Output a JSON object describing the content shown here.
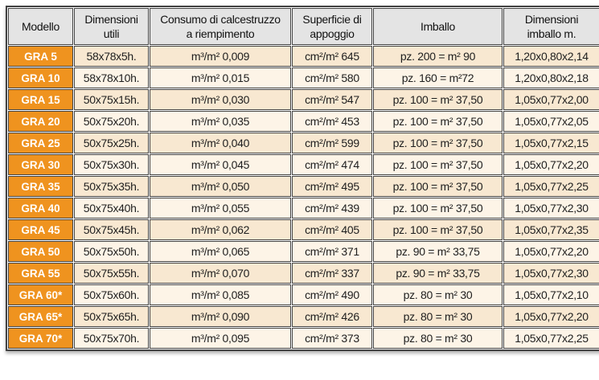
{
  "colors": {
    "accent-orange": "#ef931f",
    "header-gray": "#e4e4e4",
    "row-cream": "#f8e8d1",
    "row-light": "#fdf4e7",
    "border-dark": "#424242",
    "gap-white": "#ffffff"
  },
  "table": {
    "headers": [
      "Modello",
      "Dimensioni\nutili",
      "Consumo di calcestruzzo\na riempimento",
      "Superficie di\nappoggio",
      "Imballo",
      "Dimensioni\nimballo m."
    ],
    "rows": [
      {
        "modello": "GRA 5",
        "dimensioni_utili": "58x78x5h.",
        "consumo": "m³/m² 0,009",
        "superficie": "cm²/m² 645",
        "imballo": "pz. 200 = m² 90",
        "dimensioni_imballo": "1,20x0,80x2,14"
      },
      {
        "modello": "GRA 10",
        "dimensioni_utili": "58x78x10h.",
        "consumo": "m³/m² 0,015",
        "superficie": "cm²/m² 580",
        "imballo": "pz. 160 = m²72",
        "dimensioni_imballo": "1,20x0,80x2,18"
      },
      {
        "modello": "GRA 15",
        "dimensioni_utili": "50x75x15h.",
        "consumo": "m³/m² 0,030",
        "superficie": "cm²/m² 547",
        "imballo": "pz. 100 = m² 37,50",
        "dimensioni_imballo": "1,05x0,77x2,00"
      },
      {
        "modello": "GRA 20",
        "dimensioni_utili": "50x75x20h.",
        "consumo": "m³/m² 0,035",
        "superficie": "cm²/m² 453",
        "imballo": "pz. 100 = m² 37,50",
        "dimensioni_imballo": "1,05x0,77x2,05"
      },
      {
        "modello": "GRA 25",
        "dimensioni_utili": "50x75x25h.",
        "consumo": "m³/m² 0,040",
        "superficie": "cm²/m² 599",
        "imballo": "pz. 100 = m² 37,50",
        "dimensioni_imballo": "1,05x0,77x2,15"
      },
      {
        "modello": "GRA 30",
        "dimensioni_utili": "50x75x30h.",
        "consumo": "m³/m² 0,045",
        "superficie": "cm²/m² 474",
        "imballo": "pz. 100 = m² 37,50",
        "dimensioni_imballo": "1,05x0,77x2,20"
      },
      {
        "modello": "GRA 35",
        "dimensioni_utili": "50x75x35h.",
        "consumo": "m³/m² 0,050",
        "superficie": "cm²/m² 495",
        "imballo": "pz. 100 = m² 37,50",
        "dimensioni_imballo": "1,05x0,77x2,25"
      },
      {
        "modello": "GRA 40",
        "dimensioni_utili": "50x75x40h.",
        "consumo": "m³/m² 0,055",
        "superficie": "cm²/m² 439",
        "imballo": "pz. 100 = m² 37,50",
        "dimensioni_imballo": "1,05x0,77x2,30"
      },
      {
        "modello": "GRA 45",
        "dimensioni_utili": "50x75x45h.",
        "consumo": "m³/m² 0,062",
        "superficie": "cm²/m² 405",
        "imballo": "pz. 100 = m² 37,50",
        "dimensioni_imballo": "1,05x0,77x2,35"
      },
      {
        "modello": "GRA 50",
        "dimensioni_utili": "50x75x50h.",
        "consumo": "m³/m² 0,065",
        "superficie": "cm²/m² 371",
        "imballo": "pz. 90 = m² 33,75",
        "dimensioni_imballo": "1,05x0,77x2,20"
      },
      {
        "modello": "GRA 55",
        "dimensioni_utili": "50x75x55h.",
        "consumo": "m³/m² 0,070",
        "superficie": "cm²/m² 337",
        "imballo": "pz. 90 = m² 33,75",
        "dimensioni_imballo": "1,05x0,77x2,30"
      },
      {
        "modello": "GRA 60*",
        "dimensioni_utili": "50x75x60h.",
        "consumo": "m³/m² 0,085",
        "superficie": "cm²/m² 490",
        "imballo": "pz. 80 = m² 30",
        "dimensioni_imballo": "1,05x0,77x2,10"
      },
      {
        "modello": "GRA 65*",
        "dimensioni_utili": "50x75x65h.",
        "consumo": "m³/m² 0,090",
        "superficie": "cm²/m² 426",
        "imballo": "pz. 80 = m² 30",
        "dimensioni_imballo": "1,05x0,77x2,20"
      },
      {
        "modello": "GRA 70*",
        "dimensioni_utili": "50x75x70h.",
        "consumo": "m³/m² 0,095",
        "superficie": "cm²/m² 373",
        "imballo": "pz. 80 = m² 30",
        "dimensioni_imballo": "1,05x0,77x2,25"
      }
    ]
  }
}
